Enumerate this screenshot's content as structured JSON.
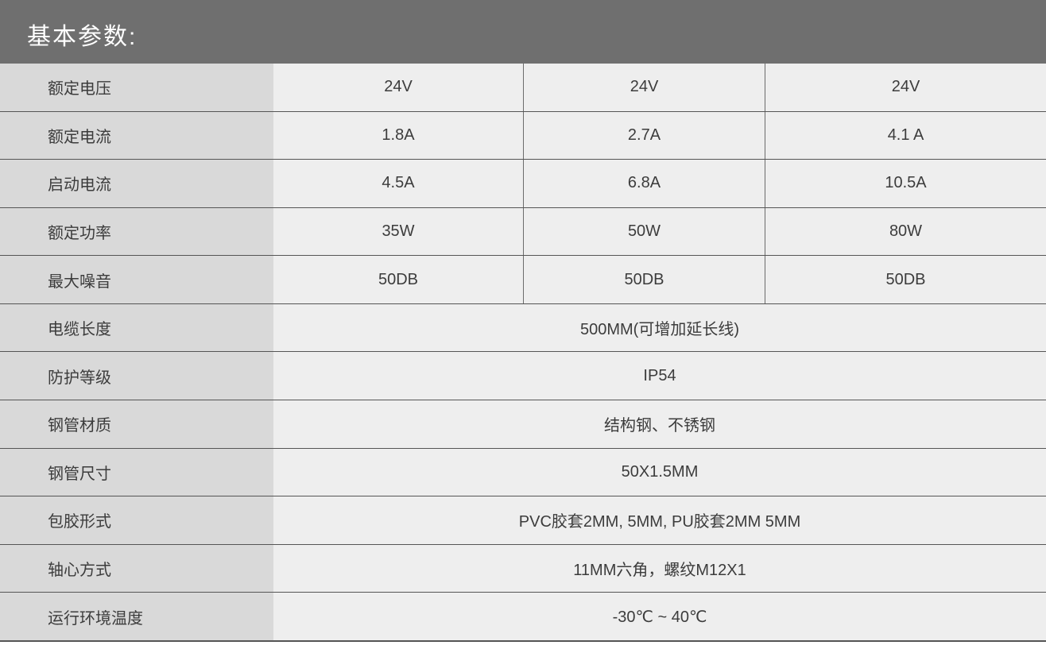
{
  "header": {
    "title": "基本参数:"
  },
  "table": {
    "rows": [
      {
        "label": "额定电压",
        "values": [
          "24V",
          "24V",
          "24V"
        ]
      },
      {
        "label": "额定电流",
        "values": [
          "1.8A",
          "2.7A",
          "4.1 A"
        ]
      },
      {
        "label": "启动电流",
        "values": [
          "4.5A",
          "6.8A",
          "10.5A"
        ]
      },
      {
        "label": "额定功率",
        "values": [
          "35W",
          "50W",
          "80W"
        ]
      },
      {
        "label": "最大噪音",
        "values": [
          "50DB",
          "50DB",
          "50DB"
        ]
      },
      {
        "label": "电缆长度",
        "value": "500MM(可增加延长线)"
      },
      {
        "label": "防护等级",
        "value": "IP54"
      },
      {
        "label": "钢管材质",
        "value": "结构钢、不锈钢"
      },
      {
        "label": "钢管尺寸",
        "value": "50X1.5MM"
      },
      {
        "label": "包胶形式",
        "value": "PVC胶套2MM, 5MM, PU胶套2MM 5MM"
      },
      {
        "label": "轴心方式",
        "value": "11MM六角，螺纹M12X1"
      },
      {
        "label": "运行环境温度",
        "value": "-30℃ ~ 40℃"
      }
    ]
  },
  "colors": {
    "header_bg": "#6f6f6f",
    "label_bg": "#d9d9d9",
    "value_bg": "#eeeeee",
    "grid_line": "#555555",
    "column_divider": "#6b6b6b",
    "text": "#3c3c3c",
    "title_text": "#ffffff"
  }
}
